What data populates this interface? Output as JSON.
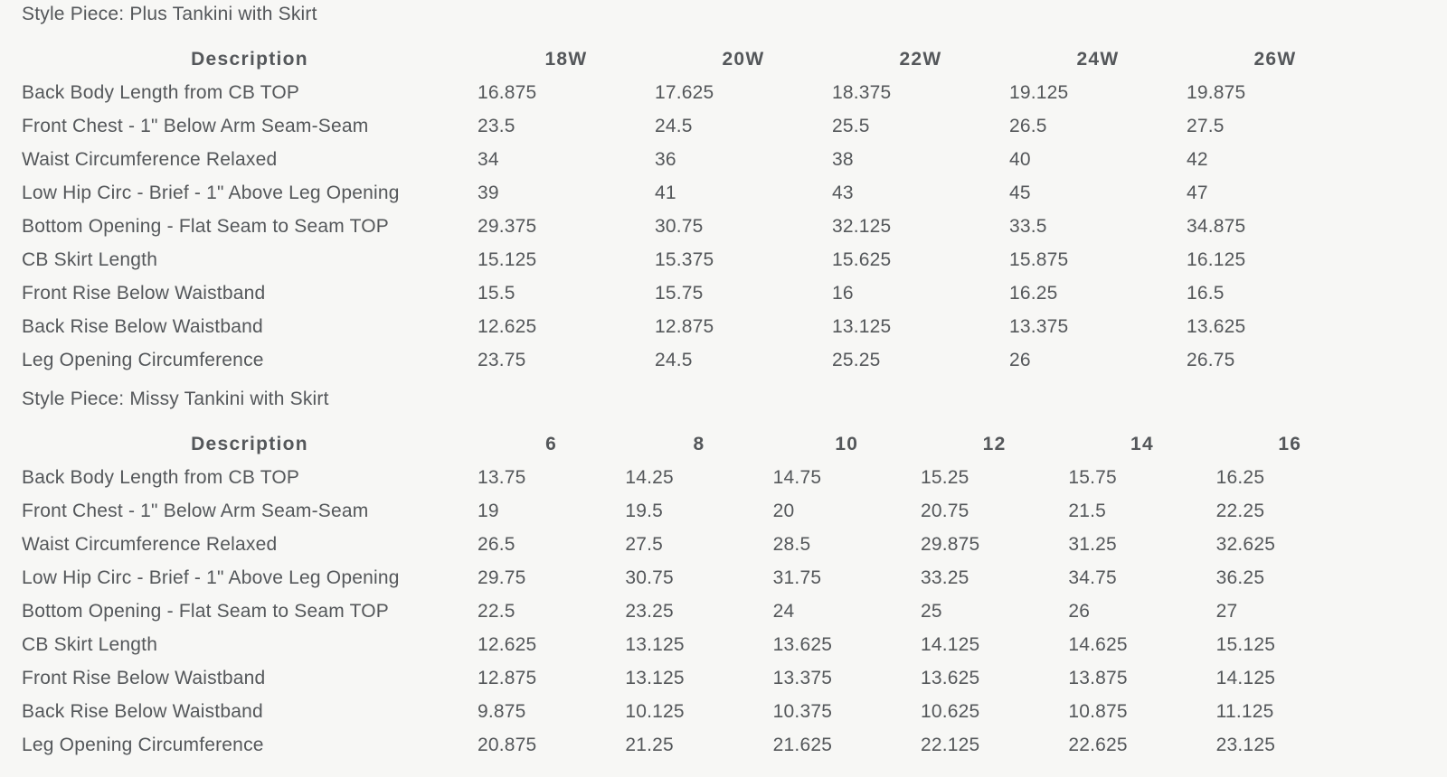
{
  "page": {
    "background_color": "#f7f7f5",
    "text_color": "#54575a"
  },
  "tables": [
    {
      "style_piece_label": "Style Piece: Plus Tankini with Skirt",
      "description_header": "Description",
      "size_headers": [
        "18W",
        "20W",
        "22W",
        "24W",
        "26W"
      ],
      "rows": [
        {
          "label": "Back Body Length from CB TOP",
          "values": [
            "16.875",
            "17.625",
            "18.375",
            "19.125",
            "19.875"
          ]
        },
        {
          "label": "Front Chest - 1\" Below Arm Seam-Seam",
          "values": [
            "23.5",
            "24.5",
            "25.5",
            "26.5",
            "27.5"
          ]
        },
        {
          "label": "Waist Circumference Relaxed",
          "values": [
            "34",
            "36",
            "38",
            "40",
            "42"
          ]
        },
        {
          "label": "Low Hip Circ - Brief - 1\" Above Leg Opening",
          "values": [
            "39",
            "41",
            "43",
            "45",
            "47"
          ]
        },
        {
          "label": "Bottom Opening - Flat Seam to Seam TOP",
          "values": [
            "29.375",
            "30.75",
            "32.125",
            "33.5",
            "34.875"
          ]
        },
        {
          "label": "CB Skirt Length",
          "values": [
            "15.125",
            "15.375",
            "15.625",
            "15.875",
            "16.125"
          ]
        },
        {
          "label": "Front Rise Below Waistband",
          "values": [
            "15.5",
            "15.75",
            "16",
            "16.25",
            "16.5"
          ]
        },
        {
          "label": "Back Rise Below Waistband",
          "values": [
            "12.625",
            "12.875",
            "13.125",
            "13.375",
            "13.625"
          ]
        },
        {
          "label": "Leg Opening Circumference",
          "values": [
            "23.75",
            "24.5",
            "25.25",
            "26",
            "26.75"
          ]
        }
      ]
    },
    {
      "style_piece_label": "Style Piece: Missy Tankini with Skirt",
      "description_header": "Description",
      "size_headers": [
        "6",
        "8",
        "10",
        "12",
        "14",
        "16"
      ],
      "rows": [
        {
          "label": "Back Body Length from CB TOP",
          "values": [
            "13.75",
            "14.25",
            "14.75",
            "15.25",
            "15.75",
            "16.25"
          ]
        },
        {
          "label": "Front Chest - 1\" Below Arm Seam-Seam",
          "values": [
            "19",
            "19.5",
            "20",
            "20.75",
            "21.5",
            "22.25"
          ]
        },
        {
          "label": "Waist Circumference Relaxed",
          "values": [
            "26.5",
            "27.5",
            "28.5",
            "29.875",
            "31.25",
            "32.625"
          ]
        },
        {
          "label": "Low Hip Circ - Brief - 1\" Above Leg Opening",
          "values": [
            "29.75",
            "30.75",
            "31.75",
            "33.25",
            "34.75",
            "36.25"
          ]
        },
        {
          "label": "Bottom Opening - Flat Seam to Seam TOP",
          "values": [
            "22.5",
            "23.25",
            "24",
            "25",
            "26",
            "27"
          ]
        },
        {
          "label": "CB Skirt Length",
          "values": [
            "12.625",
            "13.125",
            "13.625",
            "14.125",
            "14.625",
            "15.125"
          ]
        },
        {
          "label": "Front Rise Below Waistband",
          "values": [
            "12.875",
            "13.125",
            "13.375",
            "13.625",
            "13.875",
            "14.125"
          ]
        },
        {
          "label": "Back Rise Below Waistband",
          "values": [
            "9.875",
            "10.125",
            "10.375",
            "10.625",
            "10.875",
            "11.125"
          ]
        },
        {
          "label": "Leg Opening Circumference",
          "values": [
            "20.875",
            "21.25",
            "21.625",
            "22.125",
            "22.625",
            "23.125"
          ]
        }
      ]
    }
  ]
}
